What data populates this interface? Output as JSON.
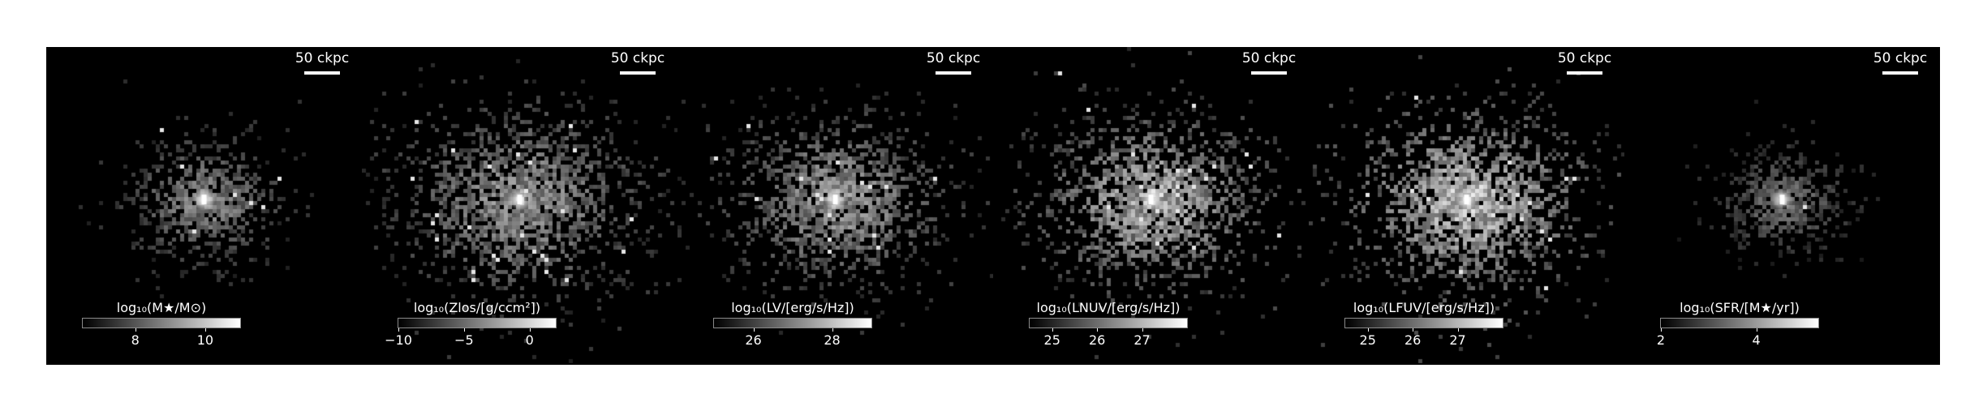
{
  "panels": [
    {
      "scalebar_label": "50 ckpc",
      "colorbar": {
        "label": "log₁₀(M★/M⊙)",
        "range": [
          6.5,
          11
        ],
        "ticks": [
          {
            "value": 8,
            "label": "8"
          },
          {
            "value": 10,
            "label": "10"
          }
        ]
      },
      "blob": {
        "spread": 0.55,
        "brightness": 0.55,
        "core": 1.0
      }
    },
    {
      "scalebar_label": "50 ckpc",
      "colorbar": {
        "label": "log₁₀(Zlos/[g/ccm²])",
        "range": [
          -10,
          2
        ],
        "ticks": [
          {
            "value": -10,
            "label": "−10"
          },
          {
            "value": -5,
            "label": "−5"
          },
          {
            "value": 0,
            "label": "0"
          }
        ]
      },
      "blob": {
        "spread": 1.0,
        "brightness": 0.6,
        "core": 1.0
      }
    },
    {
      "scalebar_label": "50 ckpc",
      "colorbar": {
        "label": "log₁₀(LV/[erg/s/Hz])",
        "range": [
          25,
          29
        ],
        "ticks": [
          {
            "value": 26,
            "label": "26"
          },
          {
            "value": 28,
            "label": "28"
          }
        ]
      },
      "blob": {
        "spread": 0.85,
        "brightness": 0.62,
        "core": 0.95
      }
    },
    {
      "scalebar_label": "50 ckpc",
      "colorbar": {
        "label": "log₁₀(LNUV/[erg/s/Hz])",
        "range": [
          24.5,
          28
        ],
        "ticks": [
          {
            "value": 25,
            "label": "25"
          },
          {
            "value": 26,
            "label": "26"
          },
          {
            "value": 27,
            "label": "27"
          }
        ]
      },
      "blob": {
        "spread": 0.9,
        "brightness": 0.72,
        "core": 0.9
      }
    },
    {
      "scalebar_label": "50 ckpc",
      "colorbar": {
        "label": "log₁₀(LFUV/[erg/s/Hz])",
        "range": [
          24.5,
          28
        ],
        "ticks": [
          {
            "value": 25,
            "label": "25"
          },
          {
            "value": 26,
            "label": "26"
          },
          {
            "value": 27,
            "label": "27"
          }
        ]
      },
      "blob": {
        "spread": 0.95,
        "brightness": 0.78,
        "core": 0.9
      }
    },
    {
      "scalebar_label": "50 ckpc",
      "colorbar": {
        "label": "log₁₀(SFR/[M★/yr])",
        "range": [
          2,
          5.3
        ],
        "ticks": [
          {
            "value": 2,
            "label": "2"
          },
          {
            "value": 4,
            "label": "4"
          }
        ]
      },
      "blob": {
        "spread": 0.45,
        "brightness": 0.45,
        "core": 0.9
      }
    }
  ]
}
